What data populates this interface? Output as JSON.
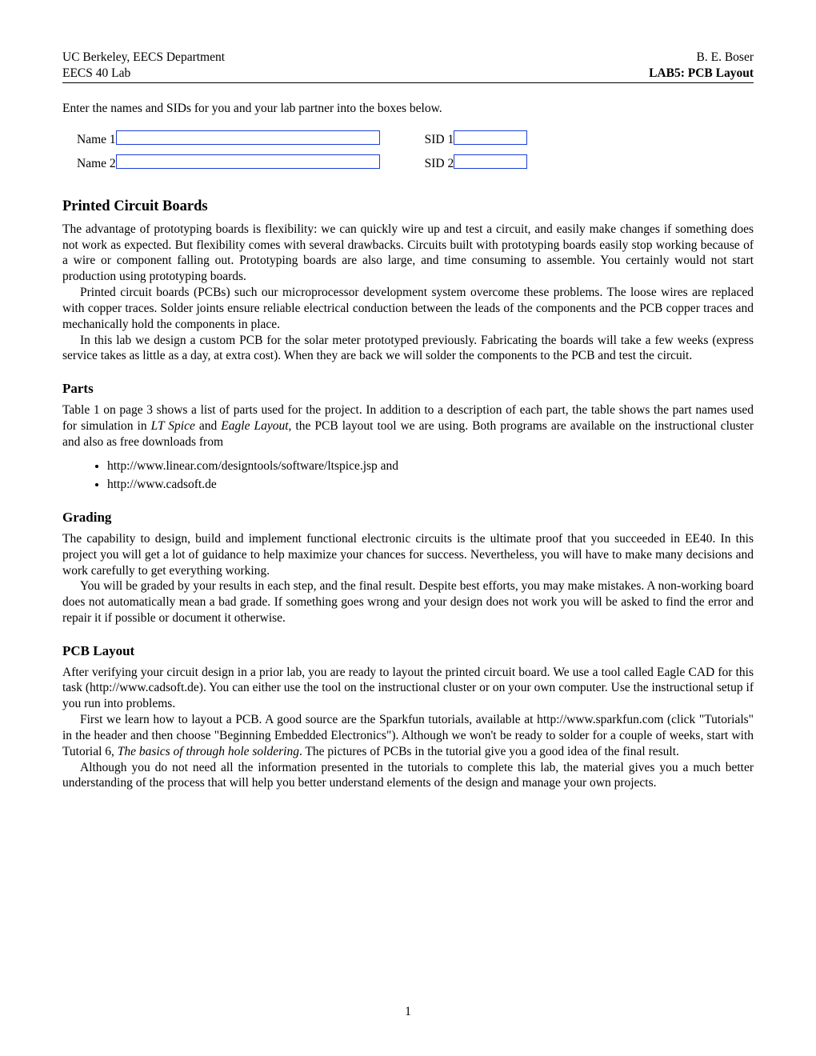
{
  "header": {
    "left_line1": "UC Berkeley, EECS Department",
    "left_line2": "EECS 40 Lab",
    "right_line1": "B. E. Boser",
    "right_line2": "LAB5: PCB Layout"
  },
  "intro": "Enter the names and SIDs for you and your lab partner into the boxes below.",
  "form": {
    "name1_label": "Name 1",
    "sid1_label": "SID 1",
    "name2_label": "Name 2",
    "sid2_label": "SID 2"
  },
  "sections": {
    "pcb": {
      "title": "Printed Circuit Boards",
      "p1": "The advantage of prototyping boards is flexibility: we can quickly wire up and test a circuit, and easily make changes if something does not work as expected. But flexibility comes with several drawbacks. Circuits built with prototyping boards easily stop working because of a wire or component falling out. Prototyping boards are also large, and time consuming to assemble. You certainly would not start production using prototyping boards.",
      "p2": "Printed circuit boards (PCBs) such our microprocessor development system overcome these problems. The loose wires are replaced with copper traces. Solder joints ensure reliable electrical conduction between the leads of the components and the PCB copper traces and mechanically hold the components in place.",
      "p3": "In this lab we design a custom PCB for the solar meter prototyped previously. Fabricating the boards will take a few weeks (express service takes as little as a day, at extra cost). When they are back we will solder the components to the PCB and test the circuit."
    },
    "parts": {
      "title": "Parts",
      "p1_a": "Table 1 on page 3 shows a list of parts used for the project. In addition to a description of each part, the table shows the part names used for simulation in ",
      "p1_i1": "LT Spice",
      "p1_b": " and ",
      "p1_i2": "Eagle Layout",
      "p1_c": ", the PCB layout tool we are using. Both programs are available on the instructional cluster and also as free downloads from",
      "bullet1": "http://www.linear.com/designtools/software/ltspice.jsp and",
      "bullet2": "http://www.cadsoft.de"
    },
    "grading": {
      "title": "Grading",
      "p1": "The capability to design, build and implement functional electronic circuits is the ultimate proof that you succeeded in EE40. In this project you will get a lot of guidance to help maximize your chances for success. Nevertheless, you will have to make many decisions and work carefully to get everything working.",
      "p2": "You will be graded by your results in each step, and the final result. Despite best efforts, you may make mistakes. A non-working board does not automatically mean a bad grade. If something goes wrong and your design does not work you will be asked to find the error and repair it if possible or document it otherwise."
    },
    "layout": {
      "title": "PCB Layout",
      "p1": "After verifying your circuit design in a prior lab, you are ready to layout the printed circuit board. We use a tool called Eagle CAD for this task (http://www.cadsoft.de). You can either use the tool on the instructional cluster or on your own computer. Use the instructional setup if you run into problems.",
      "p2_a": "First we learn how to layout a PCB. A good source are the Sparkfun tutorials, available at http://www.sparkfun.com (click \"Tutorials\" in the header and then choose \"Beginning Embedded Electronics\"). Although we won't be ready to solder for a couple of weeks, start with Tutorial 6, ",
      "p2_i": "The basics of through hole soldering",
      "p2_b": ". The pictures of PCBs in the tutorial give you a good idea of the final result.",
      "p3": "Although you do not need all the information presented in the tutorials to complete this lab, the material gives you a much better understanding of the process that will help you better understand elements of the design and manage your own projects."
    }
  },
  "page_number": "1"
}
